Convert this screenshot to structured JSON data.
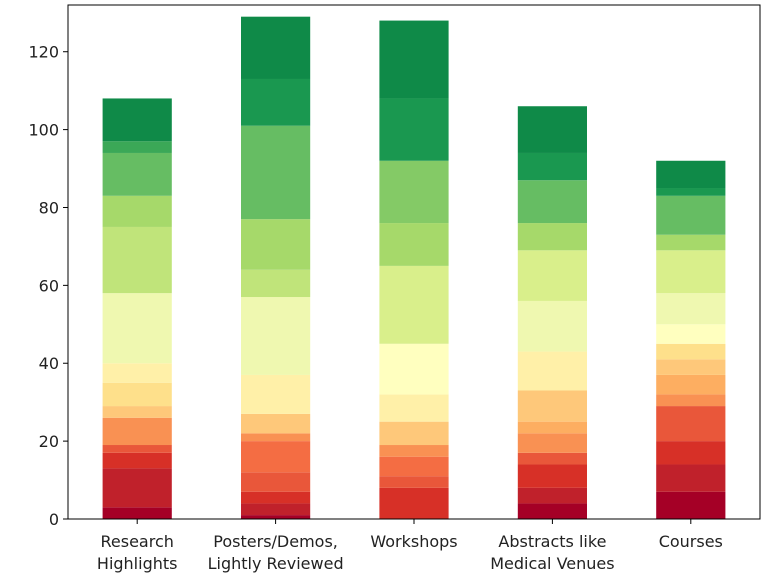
{
  "chart_data": {
    "type": "bar",
    "stacked": true,
    "title": "",
    "xlabel": "",
    "ylabel": "",
    "ylim": [
      0,
      132
    ],
    "yticks": [
      0,
      20,
      40,
      60,
      80,
      100,
      120
    ],
    "grid": false,
    "legend": "none",
    "categories": [
      [
        "Research",
        "Highlights"
      ],
      [
        "Posters/Demos,",
        "Lightly Reviewed"
      ],
      [
        "Workshops"
      ],
      [
        "Abstracts like",
        "Medical Venues"
      ],
      [
        "Courses"
      ]
    ],
    "colors": [
      "#a50026",
      "#c0212b",
      "#d73027",
      "#e9573a",
      "#f46d43",
      "#f99153",
      "#fdae61",
      "#fec87a",
      "#fee08b",
      "#fff0a8",
      "#ffffbf",
      "#eff8b0",
      "#d9ef8b",
      "#c0e47a",
      "#a6d96a",
      "#84ca66",
      "#66bd63",
      "#3ba857",
      "#1a9850",
      "#0f8a48"
    ],
    "series": [
      {
        "values": [
          3,
          1,
          0,
          4,
          7
        ]
      },
      {
        "values": [
          10,
          3,
          0,
          4,
          7
        ]
      },
      {
        "values": [
          4,
          3,
          8,
          6,
          6
        ]
      },
      {
        "values": [
          2,
          5,
          3,
          3,
          9
        ]
      },
      {
        "values": [
          0,
          8,
          5,
          0,
          0
        ]
      },
      {
        "values": [
          7,
          2,
          3,
          5,
          3
        ]
      },
      {
        "values": [
          0,
          0,
          0,
          3,
          5
        ]
      },
      {
        "values": [
          3,
          5,
          6,
          8,
          4
        ]
      },
      {
        "values": [
          6,
          0,
          0,
          0,
          4
        ]
      },
      {
        "values": [
          5,
          10,
          7,
          10,
          0
        ]
      },
      {
        "values": [
          0,
          0,
          13,
          0,
          5
        ]
      },
      {
        "values": [
          18,
          20,
          0,
          13,
          8
        ]
      },
      {
        "values": [
          0,
          0,
          20,
          13,
          11
        ]
      },
      {
        "values": [
          17,
          7,
          0,
          0,
          0
        ]
      },
      {
        "values": [
          8,
          13,
          11,
          7,
          4
        ]
      },
      {
        "values": [
          0,
          0,
          16,
          0,
          0
        ]
      },
      {
        "values": [
          11,
          24,
          0,
          11,
          10
        ]
      },
      {
        "values": [
          3,
          0,
          0,
          0,
          0
        ]
      },
      {
        "values": [
          0,
          12,
          16,
          7,
          2
        ]
      },
      {
        "values": [
          11,
          16,
          20,
          12,
          7
        ]
      }
    ]
  }
}
